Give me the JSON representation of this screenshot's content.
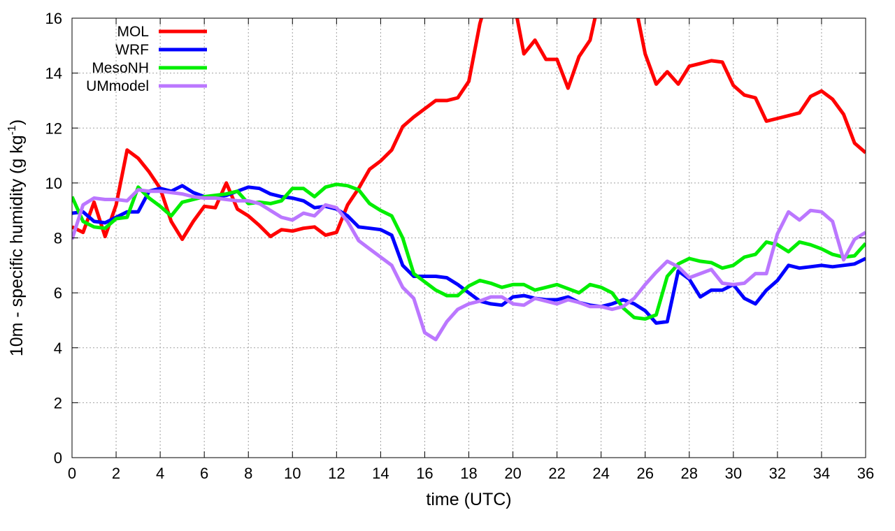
{
  "chart_data": {
    "type": "line",
    "xlabel": "time (UTC)",
    "ylabel": "10m - specific humidity (g kg",
    "ylabel_unit_sup": "-1",
    "ylabel_close": ")",
    "xlim": [
      0,
      36
    ],
    "ylim": [
      0,
      16
    ],
    "xticks": [
      0,
      2,
      4,
      6,
      8,
      10,
      12,
      14,
      16,
      18,
      20,
      22,
      24,
      26,
      28,
      30,
      32,
      34,
      36
    ],
    "yticks": [
      0,
      2,
      4,
      6,
      8,
      10,
      12,
      14,
      16
    ],
    "grid": true,
    "legend_position": "top-left",
    "x": [
      0,
      0.5,
      1,
      1.5,
      2,
      2.5,
      3,
      3.5,
      4,
      4.5,
      5,
      5.5,
      6,
      6.5,
      7,
      7.5,
      8,
      8.5,
      9,
      9.5,
      10,
      10.5,
      11,
      11.5,
      12,
      12.5,
      13,
      13.5,
      14,
      14.5,
      15,
      15.5,
      16,
      16.5,
      17,
      17.5,
      18,
      18.5,
      19,
      19.5,
      20,
      20.5,
      21,
      21.5,
      22,
      22.5,
      23,
      23.5,
      24,
      24.5,
      25,
      25.5,
      26,
      26.5,
      27,
      27.5,
      28,
      28.5,
      29,
      29.5,
      30,
      30.5,
      31,
      31.5,
      32,
      32.5,
      33,
      33.5,
      34,
      34.5,
      35,
      35.5,
      36
    ],
    "series": [
      {
        "name": "MOL",
        "color": "#ff0000",
        "values": [
          8.4,
          8.2,
          9.3,
          8.05,
          9.2,
          11.2,
          10.9,
          10.4,
          9.8,
          8.6,
          7.95,
          8.6,
          9.15,
          9.1,
          10.0,
          9.05,
          8.8,
          8.45,
          8.05,
          8.3,
          8.25,
          8.35,
          8.4,
          8.1,
          8.2,
          9.2,
          9.8,
          10.5,
          10.8,
          11.2,
          12.05,
          12.4,
          12.7,
          13.0,
          13.0,
          13.1,
          13.7,
          15.8,
          17.2,
          17.6,
          16.8,
          14.7,
          15.2,
          14.5,
          14.5,
          13.45,
          14.6,
          15.2,
          17.0,
          18.0,
          17.8,
          16.7,
          14.7,
          13.6,
          14.05,
          13.6,
          14.25,
          14.35,
          14.45,
          14.4,
          13.55,
          13.2,
          13.1,
          12.25,
          12.35,
          12.45,
          12.55,
          13.15,
          13.35,
          13.05,
          12.5,
          11.45,
          11.1
        ]
      },
      {
        "name": "WRF",
        "color": "#0000ff",
        "values": [
          8.9,
          8.95,
          8.6,
          8.55,
          8.75,
          8.95,
          8.95,
          9.7,
          9.8,
          9.7,
          9.9,
          9.65,
          9.5,
          9.5,
          9.55,
          9.7,
          9.85,
          9.8,
          9.6,
          9.5,
          9.45,
          9.35,
          9.1,
          9.15,
          9.05,
          8.8,
          8.4,
          8.35,
          8.3,
          8.1,
          7.0,
          6.6,
          6.6,
          6.6,
          6.55,
          6.3,
          6.0,
          5.7,
          5.6,
          5.55,
          5.85,
          5.9,
          5.8,
          5.75,
          5.75,
          5.85,
          5.65,
          5.55,
          5.5,
          5.6,
          5.75,
          5.6,
          5.35,
          4.9,
          4.95,
          6.8,
          6.5,
          5.85,
          6.1,
          6.1,
          6.3,
          5.8,
          5.6,
          6.1,
          6.45,
          7.0,
          6.9,
          6.95,
          7.0,
          6.95,
          7.0,
          7.05,
          7.25
        ]
      },
      {
        "name": "MesoNH",
        "color": "#00ee00",
        "values": [
          9.5,
          8.6,
          8.4,
          8.35,
          8.7,
          8.75,
          9.85,
          9.45,
          9.15,
          8.8,
          9.3,
          9.4,
          9.5,
          9.55,
          9.6,
          9.7,
          9.25,
          9.3,
          9.25,
          9.35,
          9.8,
          9.8,
          9.5,
          9.85,
          9.95,
          9.9,
          9.75,
          9.25,
          9.0,
          8.8,
          8.0,
          6.7,
          6.4,
          6.1,
          5.9,
          5.9,
          6.25,
          6.45,
          6.35,
          6.2,
          6.3,
          6.3,
          6.1,
          6.2,
          6.3,
          6.15,
          6.0,
          6.3,
          6.2,
          6.0,
          5.45,
          5.1,
          5.05,
          5.2,
          6.6,
          7.05,
          7.25,
          7.15,
          7.1,
          6.9,
          7.0,
          7.3,
          7.4,
          7.85,
          7.75,
          7.5,
          7.85,
          7.75,
          7.6,
          7.4,
          7.3,
          7.35,
          7.8
        ]
      },
      {
        "name": "UMmodel",
        "color": "#bb77ff",
        "values": [
          7.95,
          9.2,
          9.45,
          9.4,
          9.4,
          9.35,
          9.75,
          9.7,
          9.7,
          9.65,
          9.6,
          9.5,
          9.45,
          9.45,
          9.4,
          9.35,
          9.35,
          9.25,
          9.0,
          8.75,
          8.65,
          8.9,
          8.8,
          9.2,
          9.1,
          8.6,
          7.9,
          7.6,
          7.3,
          7.0,
          6.2,
          5.8,
          4.55,
          4.3,
          4.95,
          5.4,
          5.6,
          5.7,
          5.85,
          5.85,
          5.6,
          5.55,
          5.8,
          5.7,
          5.6,
          5.75,
          5.65,
          5.5,
          5.5,
          5.4,
          5.5,
          5.8,
          6.3,
          6.75,
          7.15,
          6.95,
          6.55,
          6.7,
          6.85,
          6.35,
          6.3,
          6.35,
          6.7,
          6.7,
          8.15,
          8.95,
          8.65,
          9.0,
          8.95,
          8.6,
          7.2,
          7.95,
          8.2
        ]
      }
    ]
  }
}
